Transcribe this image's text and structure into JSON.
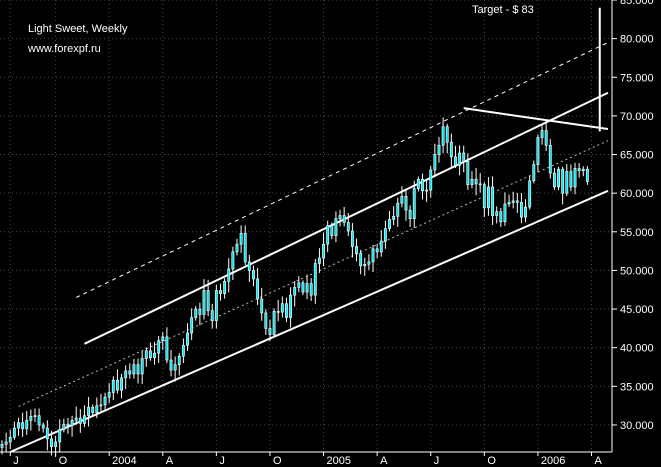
{
  "header": {
    "title": "Light Sweet, Weekly",
    "source": "www.forexpf.ru"
  },
  "chart_data": {
    "type": "candlestick",
    "title": "Light Sweet, Weekly",
    "xlabel": "",
    "ylabel": "",
    "ylim": [
      26.5,
      85
    ],
    "y_ticks": [
      "30.000",
      "35.000",
      "40.000",
      "45.000",
      "50.000",
      "55.000",
      "60.000",
      "65.000",
      "70.000",
      "75.000",
      "80.000",
      "85.000"
    ],
    "x_ticks": [
      "J",
      "O",
      "2004",
      "A",
      "J",
      "O",
      "2005",
      "A",
      "J",
      "O",
      "2006",
      "A"
    ],
    "x_tick_weeks": [
      2,
      13,
      26,
      39,
      52,
      65,
      78,
      91,
      104,
      117,
      130,
      143
    ],
    "total_weeks": 147,
    "grid": true,
    "annotation": {
      "text": "Target - $ 83",
      "target_value": 83,
      "vertical_line": {
        "week": 145,
        "from": 68,
        "to": 84
      }
    },
    "closes": [
      27.5,
      27.8,
      28.4,
      29.6,
      30.3,
      29.5,
      30.6,
      31.1,
      31.2,
      30.0,
      29.6,
      28.2,
      27.2,
      27.8,
      29.4,
      30.1,
      29.9,
      30.6,
      30.9,
      30.2,
      31.2,
      32.3,
      31.6,
      32.5,
      32.6,
      33.6,
      34.2,
      35.8,
      34.5,
      36.1,
      37.0,
      36.6,
      37.8,
      36.6,
      38.6,
      39.6,
      38.7,
      39.3,
      40.9,
      41.4,
      38.4,
      37.1,
      37.8,
      38.9,
      40.3,
      41.9,
      43.9,
      45.0,
      44.3,
      47.4,
      44.8,
      43.5,
      47.4,
      47.0,
      48.6,
      50.2,
      52.4,
      53.4,
      54.8,
      51.1,
      50.0,
      48.9,
      46.3,
      44.5,
      42.5,
      41.7,
      44.7,
      44.6,
      45.7,
      43.9,
      46.8,
      47.8,
      48.4,
      47.2,
      48.3,
      46.8,
      50.9,
      51.6,
      53.4,
      55.8,
      54.5,
      56.7,
      57.1,
      56.2,
      55.1,
      53.1,
      52.2,
      50.6,
      50.8,
      51.1,
      52.8,
      52.4,
      53.8,
      55.4,
      56.6,
      57.0,
      58.7,
      59.6,
      57.8,
      56.7,
      60.6,
      61.8,
      60.3,
      60.4,
      63.0,
      65.0,
      66.2,
      68.6,
      66.6,
      64.7,
      63.6,
      65.2,
      64.1,
      61.1,
      61.8,
      61.2,
      61.1,
      58.1,
      60.8,
      57.1,
      57.6,
      56.3,
      58.6,
      58.8,
      59.0,
      58.8,
      56.9,
      58.2,
      61.6,
      63.7,
      67.2,
      68.1,
      66.2,
      62.6,
      60.8,
      63.1,
      60.0,
      62.8,
      60.8,
      63.2,
      62.9,
      63.1,
      61.5
    ],
    "channel_lines": [
      {
        "name": "",
        "style": "solid",
        "weight": "thick",
        "from": {
          "week": 2,
          "value": 26.5
        },
        "to": {
          "week": 147,
          "value": 60.3
        }
      },
      {
        "name": "",
        "style": "solid",
        "weight": "thick",
        "from": {
          "week": 20,
          "value": 40.5
        },
        "to": {
          "week": 147,
          "value": 73.0
        }
      },
      {
        "name": "",
        "style": "dashed",
        "weight": "thin",
        "from": {
          "week": 18,
          "value": 46.5
        },
        "to": {
          "week": 147,
          "value": 79.5
        }
      },
      {
        "name": "",
        "style": "dashed",
        "weight": "thin",
        "from": {
          "week": 4,
          "value": 32.4
        },
        "to": {
          "week": 147,
          "value": 66.8
        }
      },
      {
        "name": "",
        "style": "solid",
        "weight": "thick",
        "from": {
          "week": 112,
          "value": 71.0
        },
        "to": {
          "week": 147,
          "value": 68.3
        }
      }
    ]
  }
}
